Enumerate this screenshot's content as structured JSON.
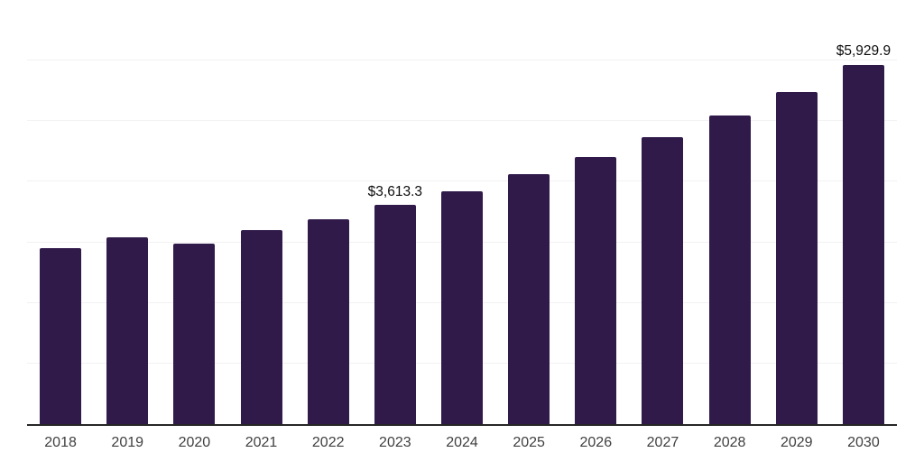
{
  "chart_data": {
    "type": "bar",
    "title": "",
    "xlabel": "",
    "ylabel": "",
    "categories": [
      "2018",
      "2019",
      "2020",
      "2021",
      "2022",
      "2023",
      "2024",
      "2025",
      "2026",
      "2027",
      "2028",
      "2029",
      "2030"
    ],
    "values": [
      2900,
      3085,
      2985,
      3205,
      3380,
      3613.3,
      3850,
      4130,
      4405,
      4735,
      5095,
      5480,
      5929.9
    ],
    "data_labels": [
      "",
      "",
      "",
      "",
      "",
      "$3,613.3",
      "",
      "",
      "",
      "",
      "",
      "",
      "$5,929.9"
    ],
    "ylim": [
      0,
      7000
    ],
    "grid": true,
    "grid_step": 1000,
    "legend": false,
    "bar_color": "#301a4a",
    "grid_color": "#f2f2f2",
    "axis_color": "#262626",
    "tick_label_color": "#404040",
    "data_label_color": "#0d0d0d",
    "background_color": "#ffffff"
  }
}
